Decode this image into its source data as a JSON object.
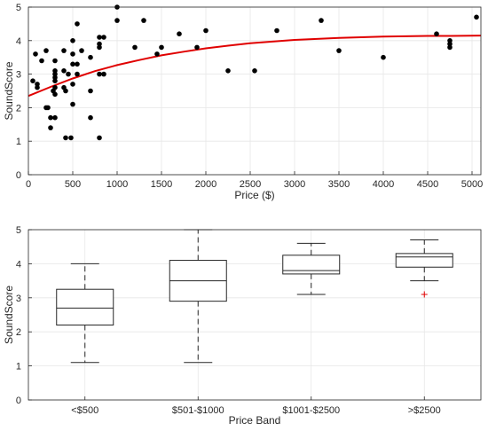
{
  "chart_data": [
    {
      "type": "scatter",
      "xlabel": "Price ($)",
      "ylabel": "SoundScore",
      "xlim": [
        0,
        5100
      ],
      "ylim": [
        0,
        5
      ],
      "xticks": [
        0,
        500,
        1000,
        1500,
        2000,
        2500,
        3000,
        3500,
        4000,
        4500,
        5000
      ],
      "yticks": [
        0,
        1,
        2,
        3,
        4,
        5
      ],
      "grid": true,
      "point_color": "#000000",
      "fit_color": "#e00000",
      "points": [
        [
          50,
          2.8
        ],
        [
          80,
          3.6
        ],
        [
          100,
          2.7
        ],
        [
          100,
          2.6
        ],
        [
          150,
          3.4
        ],
        [
          200,
          3.7
        ],
        [
          200,
          2.0
        ],
        [
          220,
          2.0
        ],
        [
          250,
          1.4
        ],
        [
          250,
          1.7
        ],
        [
          280,
          2.5
        ],
        [
          300,
          1.7
        ],
        [
          300,
          2.4
        ],
        [
          300,
          2.6
        ],
        [
          300,
          2.8
        ],
        [
          300,
          2.9
        ],
        [
          300,
          3.0
        ],
        [
          300,
          3.1
        ],
        [
          300,
          3.4
        ],
        [
          400,
          3.7
        ],
        [
          400,
          3.1
        ],
        [
          400,
          2.6
        ],
        [
          420,
          2.5
        ],
        [
          420,
          1.1
        ],
        [
          450,
          3.0
        ],
        [
          480,
          1.1
        ],
        [
          500,
          2.7
        ],
        [
          500,
          2.1
        ],
        [
          500,
          3.6
        ],
        [
          500,
          3.3
        ],
        [
          500,
          4.0
        ],
        [
          550,
          3.0
        ],
        [
          550,
          3.3
        ],
        [
          550,
          4.5
        ],
        [
          600,
          3.7
        ],
        [
          700,
          3.5
        ],
        [
          700,
          2.5
        ],
        [
          700,
          1.7
        ],
        [
          800,
          1.1
        ],
        [
          800,
          4.1
        ],
        [
          800,
          3.9
        ],
        [
          800,
          3.8
        ],
        [
          800,
          3.0
        ],
        [
          850,
          4.1
        ],
        [
          850,
          3.0
        ],
        [
          1000,
          5.0
        ],
        [
          1000,
          4.6
        ],
        [
          1200,
          3.8
        ],
        [
          1300,
          4.6
        ],
        [
          1450,
          3.6
        ],
        [
          1500,
          3.8
        ],
        [
          1700,
          4.2
        ],
        [
          1900,
          3.8
        ],
        [
          2000,
          4.3
        ],
        [
          2250,
          3.1
        ],
        [
          2550,
          3.1
        ],
        [
          2800,
          4.3
        ],
        [
          3300,
          4.6
        ],
        [
          3500,
          3.7
        ],
        [
          4000,
          3.5
        ],
        [
          4600,
          4.2
        ],
        [
          4750,
          4.0
        ],
        [
          4750,
          3.9
        ],
        [
          4750,
          3.8
        ],
        [
          5050,
          4.7
        ]
      ],
      "fit_curve": [
        [
          0,
          2.35
        ],
        [
          250,
          2.62
        ],
        [
          500,
          2.87
        ],
        [
          750,
          3.09
        ],
        [
          1000,
          3.27
        ],
        [
          1250,
          3.42
        ],
        [
          1500,
          3.56
        ],
        [
          1750,
          3.67
        ],
        [
          2000,
          3.77
        ],
        [
          2250,
          3.85
        ],
        [
          2500,
          3.92
        ],
        [
          2750,
          3.97
        ],
        [
          3000,
          4.02
        ],
        [
          3250,
          4.05
        ],
        [
          3500,
          4.08
        ],
        [
          3750,
          4.1
        ],
        [
          4000,
          4.12
        ],
        [
          4250,
          4.13
        ],
        [
          4500,
          4.14
        ],
        [
          4750,
          4.14
        ],
        [
          5100,
          4.15
        ]
      ]
    },
    {
      "type": "box",
      "xlabel": "Price Band",
      "ylabel": "SoundScore",
      "ylim": [
        0,
        5
      ],
      "yticks": [
        0,
        1,
        2,
        3,
        4,
        5
      ],
      "grid": true,
      "outlier_color": "#e00000",
      "categories": [
        "<$500",
        "$501-$1000",
        "$1001-$2500",
        ">$2500"
      ],
      "boxes": [
        {
          "whisker_low": 1.1,
          "q1": 2.2,
          "median": 2.7,
          "q3": 3.25,
          "whisker_high": 4.0,
          "outliers": []
        },
        {
          "whisker_low": 1.1,
          "q1": 2.9,
          "median": 3.5,
          "q3": 4.1,
          "whisker_high": 5.0,
          "outliers": []
        },
        {
          "whisker_low": 3.1,
          "q1": 3.7,
          "median": 3.8,
          "q3": 4.25,
          "whisker_high": 4.6,
          "outliers": []
        },
        {
          "whisker_low": 3.5,
          "q1": 3.9,
          "median": 4.2,
          "q3": 4.3,
          "whisker_high": 4.7,
          "outliers": [
            3.1
          ]
        }
      ]
    }
  ]
}
